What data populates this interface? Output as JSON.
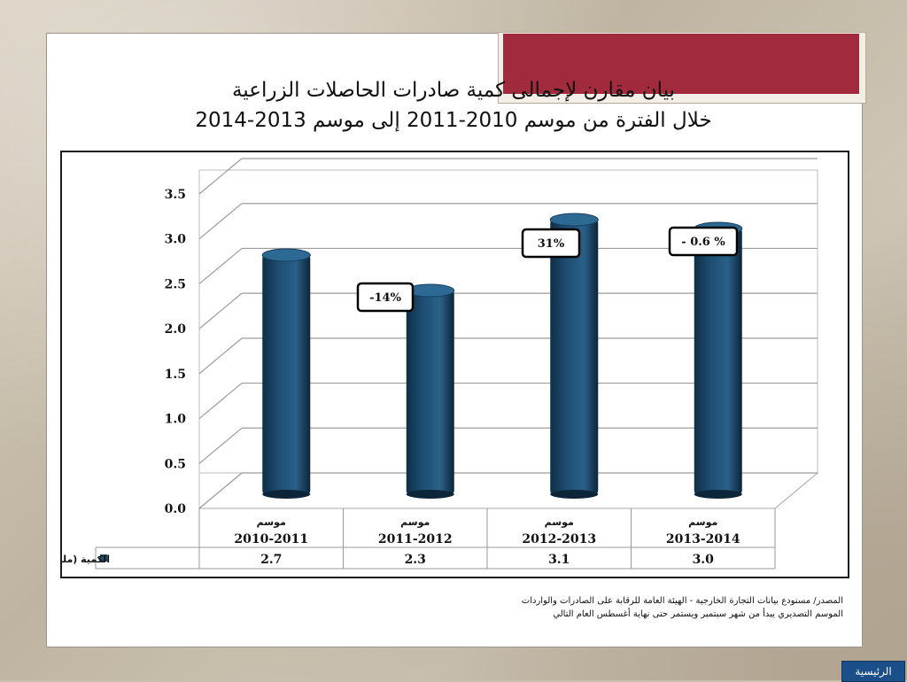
{
  "slide": {
    "title_line1": "بيان مقارن لإجمالى كمية صادرات الحاصلات الزراعية",
    "title_line2": "خلال الفترة من موسم 2010-2011 إلى موسم 2013-2014",
    "source_line1": "المصدر/ مسنودع بيانات التجارة الخارجية - الهيئة العامة للرقابة على الصادرات والواردات",
    "source_line2": "الموسم التصديري يبدأ من شهر سبتمبر ويستمر حتى نهاية أغسطس العام التالي",
    "home_button": "الرئيسية"
  },
  "colors": {
    "bar": "#1e4e72",
    "banner": "#a12a3c",
    "home_button": "#1b4f8a"
  },
  "chart_data": {
    "type": "bar",
    "style": "3d-cylinder",
    "categories": [
      [
        "موسم",
        "2010-2011"
      ],
      [
        "موسم",
        "2011-2012"
      ],
      [
        "موسم",
        "2012-2013"
      ],
      [
        "موسم",
        "2013-2014"
      ]
    ],
    "series": [
      {
        "name": "الكمية (مليون طن)",
        "values": [
          2.7,
          2.3,
          3.1,
          3.0
        ]
      }
    ],
    "table_values": [
      "2.7",
      "2.3",
      "3.1",
      "3.0"
    ],
    "y_ticks": [
      "0.0",
      "0.5",
      "1.0",
      "1.5",
      "2.0",
      "2.5",
      "3.0",
      "3.5"
    ],
    "ylim": [
      0,
      3.5
    ],
    "grid": true,
    "data_table": true,
    "annotations": [
      {
        "bar_index": 1,
        "text": "-14%"
      },
      {
        "bar_index": 2,
        "text": "31%"
      },
      {
        "bar_index": 3,
        "text": "- 0.6 %"
      }
    ]
  }
}
